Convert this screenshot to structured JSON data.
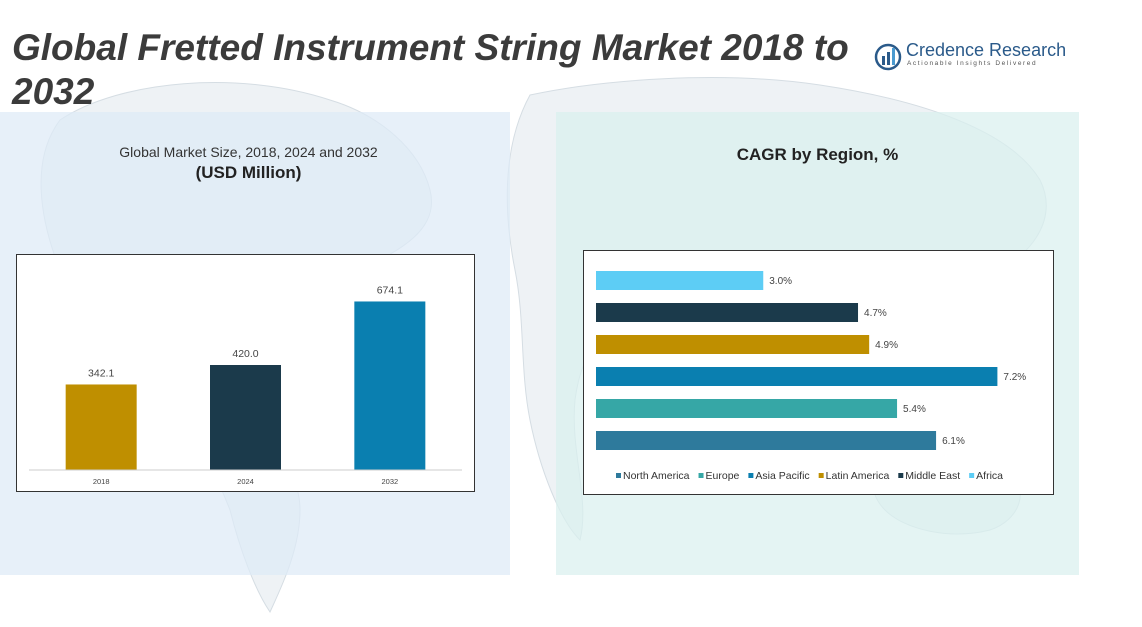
{
  "header": {
    "title": "Global Fretted Instrument String Market 2018 to 2032",
    "logo_name": "Credence Research",
    "logo_tagline": "Actionable Insights Delivered"
  },
  "left_panel": {
    "subtitle": "Global Market Size, 2018, 2024 and 2032",
    "unit": "(USD Million)"
  },
  "right_panel": {
    "title": "CAGR by Region, %"
  },
  "chart_data": [
    {
      "type": "bar",
      "title": "Global Market Size, 2018, 2024 and 2032",
      "ylabel": "(USD Million)",
      "categories": [
        "2018",
        "2024",
        "2032"
      ],
      "values": [
        342.1,
        420.0,
        674.1
      ],
      "value_labels": [
        "342.1",
        "420.0",
        "674.1"
      ],
      "colors": [
        "#bf8f00",
        "#1b3a4b",
        "#0a7fb0"
      ],
      "ylim": [
        0,
        740
      ],
      "grid": false,
      "legend": "none"
    },
    {
      "type": "bar",
      "orientation": "horizontal",
      "title": "CAGR by Region, %",
      "categories": [
        "Africa",
        "Middle East",
        "Latin America",
        "Asia Pacific",
        "Europe",
        "North America"
      ],
      "values": [
        3.0,
        4.7,
        4.9,
        7.2,
        5.4,
        6.1
      ],
      "value_labels": [
        "3.0%",
        "4.7%",
        "4.9%",
        "7.2%",
        "5.4%",
        "6.1%"
      ],
      "colors": [
        "#5dcdf5",
        "#1b3a4b",
        "#bf8f00",
        "#0a7fb0",
        "#36a7a6",
        "#2e7a9c"
      ],
      "legend_order": [
        "North America",
        "Europe",
        "Asia Pacific",
        "Latin America",
        "Middle East",
        "Africa"
      ],
      "legend_colors": [
        "#2e7a9c",
        "#36a7a6",
        "#0a7fb0",
        "#bf8f00",
        "#1b3a4b",
        "#5dcdf5"
      ],
      "xlim": [
        0,
        8.0
      ],
      "grid": false,
      "legend": "bottom"
    }
  ]
}
